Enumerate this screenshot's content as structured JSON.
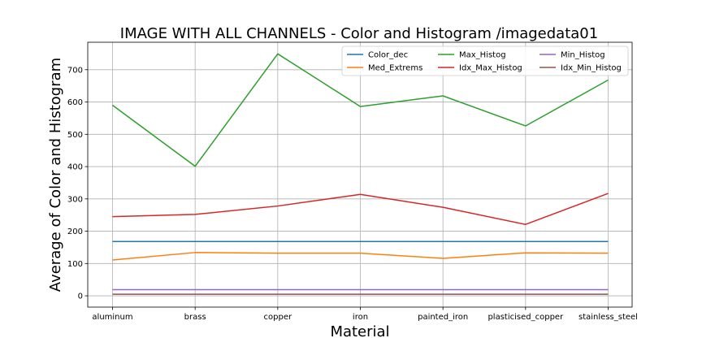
{
  "chart_data": {
    "type": "line",
    "title": "IMAGE WITH ALL CHANNELS - Color and Histogram /imagedata01",
    "xlabel": "Material",
    "ylabel": "Average of Color and Histogram",
    "categories": [
      "aluminum",
      "brass",
      "copper",
      "iron",
      "painted_iron",
      "plasticised_copper",
      "stainless_steel"
    ],
    "ylim": [
      -35,
      785
    ],
    "yticks": [
      0,
      100,
      200,
      300,
      400,
      500,
      600,
      700
    ],
    "grid": true,
    "legend_position": "top-right",
    "legend_columns": 3,
    "series": [
      {
        "name": "Color_dec",
        "color": "#1f77b4",
        "values": [
          168,
          168,
          168,
          168,
          168,
          168,
          168
        ]
      },
      {
        "name": "Med_Extrems",
        "color": "#ff7f0e",
        "values": [
          111,
          134,
          132,
          132,
          116,
          133,
          132
        ]
      },
      {
        "name": "Max_Histog",
        "color": "#2ca02c",
        "values": [
          590,
          401,
          749,
          586,
          619,
          526,
          668
        ]
      },
      {
        "name": "Idx_Max_Histog",
        "color": "#d62728",
        "values": [
          245,
          252,
          278,
          314,
          274,
          221,
          317
        ]
      },
      {
        "name": "Min_Histog",
        "color": "#9467bd",
        "values": [
          19,
          19,
          19,
          19,
          19,
          19,
          19
        ]
      },
      {
        "name": "Idx_Min_Histog",
        "color": "#8c564b",
        "values": [
          5,
          5,
          5,
          5,
          5,
          5,
          5
        ]
      }
    ]
  }
}
